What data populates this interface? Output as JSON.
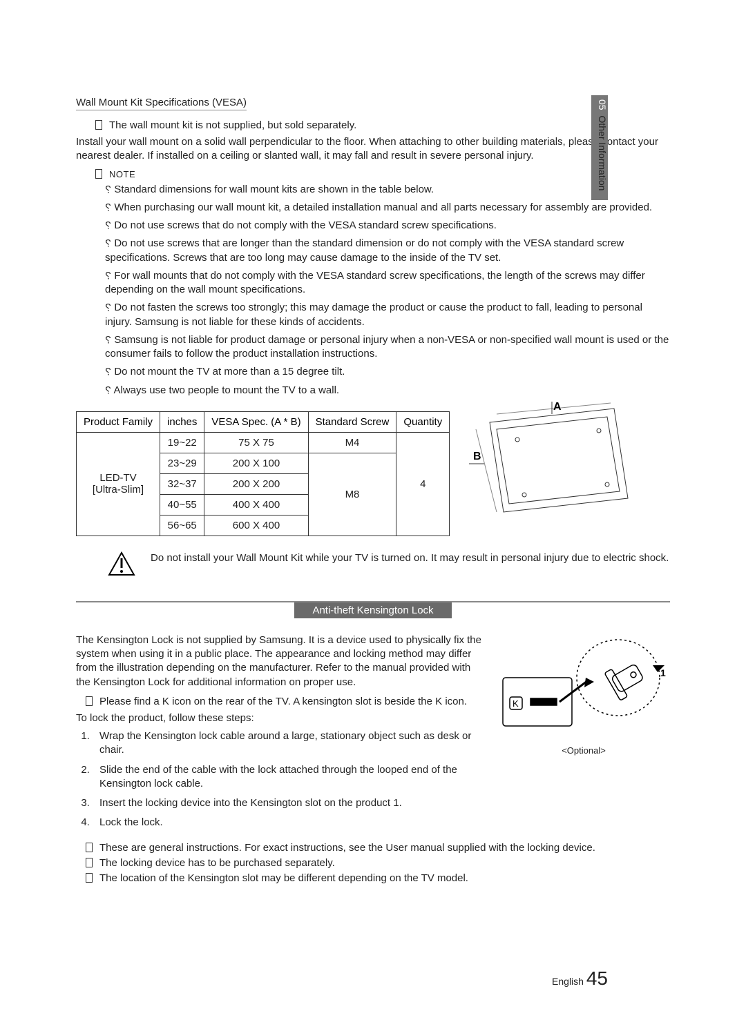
{
  "sideTab": {
    "num": "05",
    "label": "Other Information"
  },
  "sectionTitle": "Wall Mount Kit Speciﬁcations (VESA)",
  "introNote": "The wall mount kit is not supplied, but sold separately.",
  "introPara": "Install your wall mount on a solid wall perpendicular to the ﬂoor. When attaching to other building materials, please contact your nearest dealer. If installed on a ceiling or slanted wall, it may fall and result in severe personal injury.",
  "noteLabel": "NOTE",
  "bullets": [
    "Standard dimensions for wall mount kits are shown in the table below.",
    "When purchasing our wall mount kit, a detailed installation manual and all parts necessary for assembly are provided.",
    "Do not use screws that do not comply with the VESA standard screw specifications.",
    "Do not use screws that are longer than the standard dimension or do not comply with the VESA standard screw specifications. Screws that are too long may cause damage to the inside of the TV set.",
    "For wall mounts that do not comply with the VESA standard screw specifications, the length of the screws may differ depending on the wall mount specifications.",
    "Do not fasten the screws too strongly; this may damage the product or cause the product to fall, leading to personal injury. Samsung is not liable for these kinds of accidents.",
    "Samsung is not liable for product damage or personal injury when a non-VESA or non-specified wall mount is used or the consumer fails to follow the product installation instructions.",
    "Do not mount the TV at more than a 15 degree tilt.",
    "Always use two people to mount the TV to a wall."
  ],
  "table": {
    "headers": [
      "Product Family",
      "inches",
      "VESA Spec. (A * B)",
      "Standard Screw",
      "Quantity"
    ],
    "family": "LED-TV\n[Ultra-Slim]",
    "rows": [
      {
        "inches": "19~22",
        "vesa": "75 X 75",
        "screw": "M4"
      },
      {
        "inches": "23~29",
        "vesa": "200 X 100",
        "screw": "M8"
      },
      {
        "inches": "32~37",
        "vesa": "200 X 200",
        "screw": "M8"
      },
      {
        "inches": "40~55",
        "vesa": "400 X 400",
        "screw": "M8"
      },
      {
        "inches": "56~65",
        "vesa": "600 X 400",
        "screw": "M8"
      }
    ],
    "qty": "4"
  },
  "diagramLabels": {
    "A": "A",
    "B": "B"
  },
  "warning": "Do not install your Wall Mount Kit while your TV is turned on. It may result in personal injury due to electric shock.",
  "bannerTitle": "Anti-theft Kensington Lock",
  "kensPara": "The Kensington Lock is not supplied by Samsung. It is a device used to physically ﬁx the system when using it in a public place. The appearance and locking method may differ from the illustration depending on the manufacturer. Refer to the manual provided with the Kensington Lock for additional information on proper use.",
  "kensNote": "Please find a K icon on the rear of the TV. A kensington slot is beside the K icon.",
  "stepsIntro": "To lock the product, follow these steps:",
  "steps": [
    "Wrap the Kensington lock cable around a large, stationary object such as desk or chair.",
    "Slide the end of the cable with the lock attached through the looped end of the Kensington lock cable.",
    "Insert the locking device into the Kensington slot on the product 1.",
    "Lock the lock."
  ],
  "tailNotes": [
    "These are general instructions. For exact instructions, see the User manual supplied with the locking device.",
    "The locking device has to be purchased separately.",
    "The location of the Kensington slot may be different depending on the TV model."
  ],
  "optionalCaption": "<Optional>",
  "lockLabel": "1",
  "footer": {
    "lang": "English",
    "page": "45"
  }
}
